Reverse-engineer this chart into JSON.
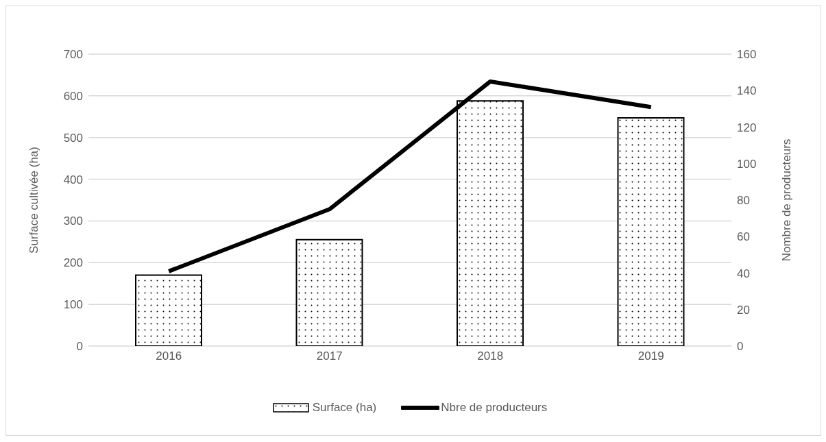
{
  "chart_data": {
    "type": "bar",
    "categories": [
      "2016",
      "2017",
      "2018",
      "2019"
    ],
    "ylabel": "Surface cultivée (ha)",
    "y2label": "Nombre de producteurs",
    "series": [
      {
        "name": "Surface (ha)",
        "color": "#000000",
        "values": [
          170,
          255,
          588,
          547
        ]
      },
      {
        "name": "Nbre de producteurs",
        "type": "line",
        "axis": "y2",
        "color": "#000000",
        "values": [
          41,
          75,
          145,
          131
        ]
      }
    ],
    "ylim": [
      0,
      700
    ],
    "yticks": [
      0,
      100,
      200,
      300,
      400,
      500,
      600,
      700
    ],
    "y2lim": [
      0,
      160
    ],
    "y2ticks": [
      0,
      20,
      40,
      60,
      80,
      100,
      120,
      140,
      160
    ],
    "grid": "y",
    "legend": "bottom",
    "marker": "none",
    "line_style": "solid"
  }
}
